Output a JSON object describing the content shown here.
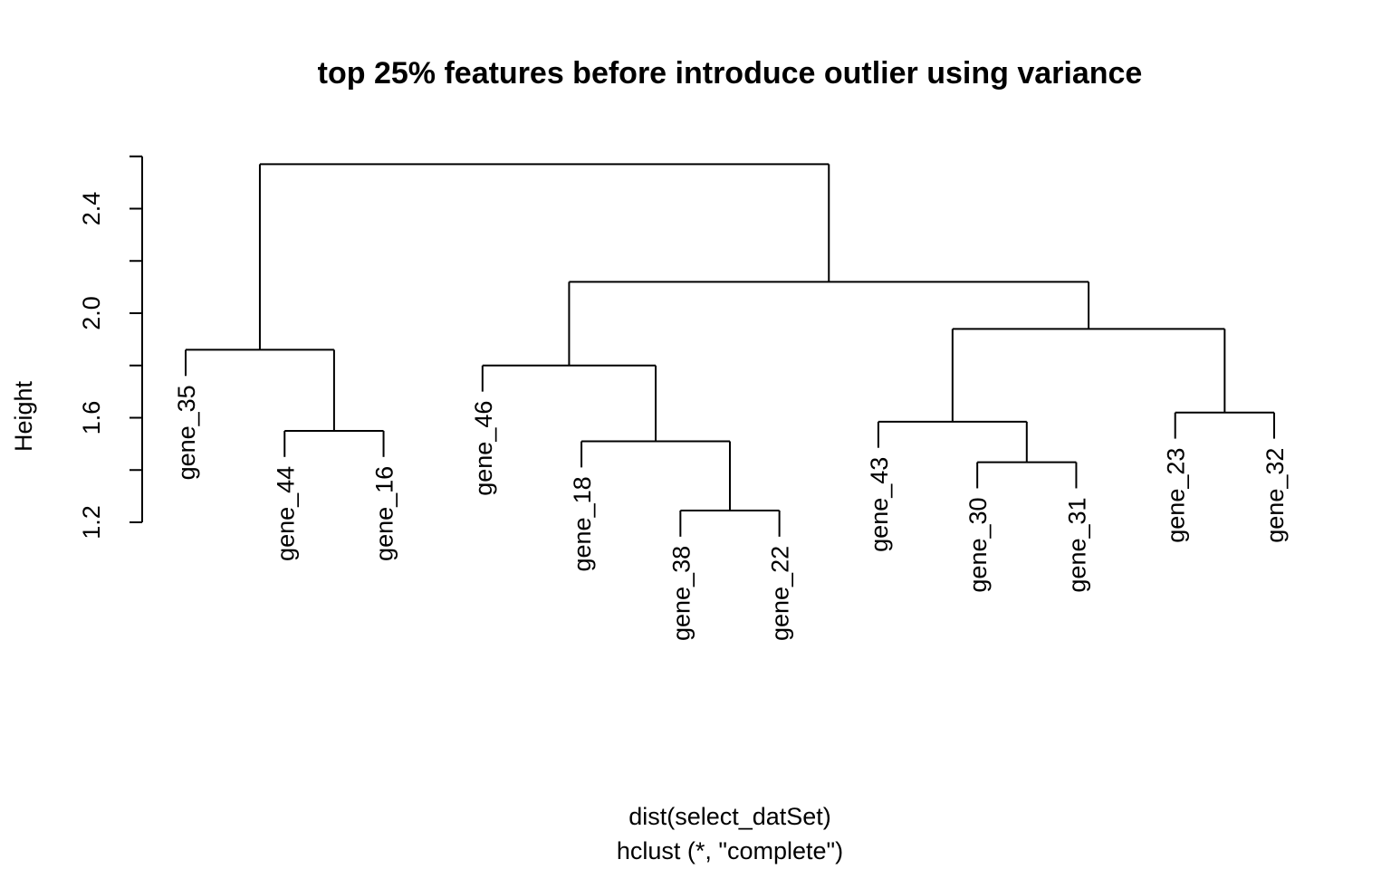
{
  "chart_data": {
    "type": "dendrogram",
    "title": "top 25% features before introduce outlier using variance",
    "ylabel": "Height",
    "xlabel": "dist(select_datSet)",
    "sub": "hclust (*, \"complete\")",
    "yticks": [
      1.2,
      1.6,
      2.0,
      2.4
    ],
    "yticks_labeled": [
      "1.2",
      "1.6",
      "2.0",
      "2.4"
    ],
    "ylim": [
      1.2,
      2.6
    ],
    "leaf_label_hang": 0.1,
    "leaves": [
      "gene_35",
      "gene_44",
      "gene_16",
      "gene_46",
      "gene_18",
      "gene_38",
      "gene_22",
      "gene_43",
      "gene_30",
      "gene_31",
      "gene_23",
      "gene_32"
    ],
    "merges": [
      {
        "a": "gene_44",
        "b": "gene_16",
        "height": 1.55
      },
      {
        "a": "gene_35",
        "b": 0,
        "height": 1.86
      },
      {
        "a": "gene_38",
        "b": "gene_22",
        "height": 1.245
      },
      {
        "a": "gene_18",
        "b": 2,
        "height": 1.51
      },
      {
        "a": "gene_46",
        "b": 3,
        "height": 1.8
      },
      {
        "a": "gene_30",
        "b": "gene_31",
        "height": 1.43
      },
      {
        "a": "gene_43",
        "b": 5,
        "height": 1.585
      },
      {
        "a": "gene_23",
        "b": "gene_32",
        "height": 1.62
      },
      {
        "a": 6,
        "b": 7,
        "height": 1.94
      },
      {
        "a": 4,
        "b": 8,
        "height": 2.12
      },
      {
        "a": 1,
        "b": 9,
        "height": 2.57
      }
    ]
  }
}
